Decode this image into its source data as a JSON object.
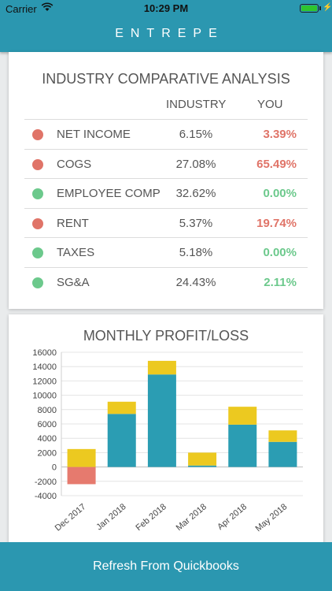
{
  "status": {
    "carrier": "Carrier",
    "time": "10:29 PM"
  },
  "app": {
    "title": "ENTREPE"
  },
  "comparison": {
    "title": "INDUSTRY COMPARATIVE ANALYSIS",
    "col_industry": "INDUSTRY",
    "col_you": "YOU",
    "colors": {
      "bad": "#e07468",
      "good": "#6cc98c"
    },
    "rows": [
      {
        "name": "NET INCOME",
        "industry": "6.15%",
        "you": "3.39%",
        "status": "bad"
      },
      {
        "name": "COGS",
        "industry": "27.08%",
        "you": "65.49%",
        "status": "bad"
      },
      {
        "name": "EMPLOYEE COMP",
        "industry": "32.62%",
        "you": "0.00%",
        "status": "good"
      },
      {
        "name": "RENT",
        "industry": "5.37%",
        "you": "19.74%",
        "status": "bad"
      },
      {
        "name": "TAXES",
        "industry": "5.18%",
        "you": "0.00%",
        "status": "good"
      },
      {
        "name": "SG&A",
        "industry": "24.43%",
        "you": "2.11%",
        "status": "good"
      }
    ]
  },
  "chart_title": "MONTHLY PROFIT/LOSS",
  "chart_data": {
    "type": "bar",
    "title": "MONTHLY PROFIT/LOSS",
    "stacked": true,
    "categories": [
      "Dec 2017",
      "Jan 2018",
      "Feb 2018",
      "Mar 2018",
      "Apr 2018",
      "May 2018"
    ],
    "series": [
      {
        "color": "#2b9db3",
        "values": [
          -2400,
          7400,
          12900,
          200,
          5900,
          3500
        ]
      },
      {
        "color": "#ecc920",
        "values": [
          2500,
          1700,
          1900,
          1800,
          2500,
          1600
        ]
      }
    ],
    "ylim": [
      -4000,
      16000
    ],
    "yticks": [
      -4000,
      -2000,
      0,
      2000,
      4000,
      6000,
      8000,
      10000,
      12000,
      14000,
      16000
    ],
    "negative_color": "#e67a6e",
    "grid": true,
    "xlabel": "",
    "ylabel": ""
  },
  "footer": {
    "refresh_label": "Refresh From Quickbooks"
  }
}
